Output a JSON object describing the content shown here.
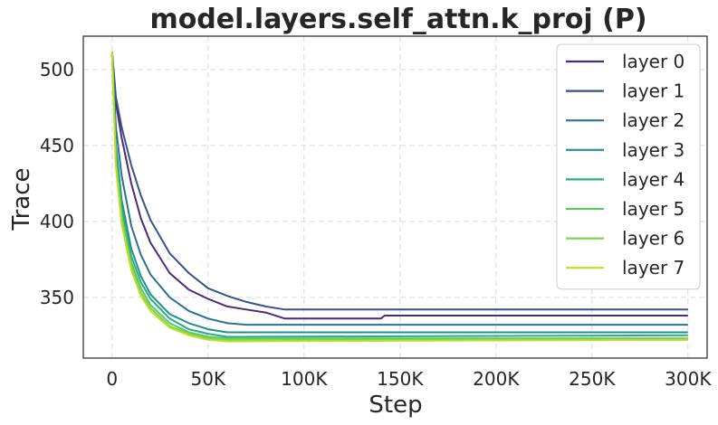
{
  "chart_data": {
    "type": "line",
    "title": "model.layers.self_attn.k_proj (P)",
    "xlabel": "Step",
    "ylabel": "Trace",
    "xlim": [
      -15000,
      310000
    ],
    "ylim": [
      310,
      522
    ],
    "xticks": [
      0,
      50000,
      100000,
      150000,
      200000,
      250000,
      300000
    ],
    "xtick_labels": [
      "0",
      "50K",
      "100K",
      "150K",
      "200K",
      "250K",
      "300K"
    ],
    "yticks": [
      350,
      400,
      450,
      500
    ],
    "ytick_labels": [
      "350",
      "400",
      "450",
      "500"
    ],
    "grid": true,
    "legend_position": "top-right",
    "series": [
      {
        "name": "layer 0",
        "color": "#472c7a",
        "x": [
          0,
          2000,
          5000,
          10000,
          15000,
          20000,
          30000,
          40000,
          50000,
          60000,
          70000,
          80000,
          90000,
          100000,
          140000,
          142000,
          300000
        ],
        "y": [
          510,
          478,
          455,
          425,
          402,
          386,
          366,
          355,
          349,
          344,
          342,
          340,
          336,
          336,
          336,
          338,
          338
        ]
      },
      {
        "name": "layer 1",
        "color": "#3b518b",
        "x": [
          0,
          2000,
          5000,
          10000,
          15000,
          20000,
          30000,
          40000,
          50000,
          60000,
          70000,
          80000,
          90000,
          300000
        ],
        "y": [
          512,
          482,
          462,
          437,
          417,
          401,
          379,
          366,
          356,
          351,
          347,
          344,
          342,
          342
        ]
      },
      {
        "name": "layer 2",
        "color": "#2c718e",
        "x": [
          0,
          2000,
          5000,
          10000,
          15000,
          20000,
          30000,
          40000,
          50000,
          60000,
          70000,
          300000
        ],
        "y": [
          510,
          462,
          430,
          397,
          378,
          365,
          350,
          341,
          336,
          333,
          332,
          332
        ]
      },
      {
        "name": "layer 3",
        "color": "#21908d",
        "x": [
          0,
          2000,
          5000,
          10000,
          15000,
          20000,
          30000,
          40000,
          50000,
          60000,
          300000
        ],
        "y": [
          510,
          450,
          414,
          382,
          364,
          352,
          339,
          333,
          329,
          327,
          327
        ]
      },
      {
        "name": "layer 4",
        "color": "#27ad81",
        "x": [
          0,
          2000,
          5000,
          10000,
          15000,
          20000,
          30000,
          40000,
          50000,
          60000,
          300000
        ],
        "y": [
          510,
          445,
          408,
          377,
          360,
          349,
          336,
          329,
          326,
          324,
          325
        ]
      },
      {
        "name": "layer 5",
        "color": "#5cc863",
        "x": [
          0,
          2000,
          5000,
          10000,
          15000,
          20000,
          30000,
          40000,
          50000,
          60000,
          300000
        ],
        "y": [
          510,
          440,
          404,
          373,
          356,
          345,
          333,
          327,
          324,
          323,
          323
        ]
      },
      {
        "name": "layer 6",
        "color": "#7fd34e",
        "x": [
          0,
          2000,
          5000,
          10000,
          15000,
          20000,
          30000,
          40000,
          50000,
          60000,
          300000
        ],
        "y": [
          510,
          438,
          400,
          370,
          353,
          343,
          331,
          326,
          323,
          322,
          322
        ]
      },
      {
        "name": "layer 7",
        "color": "#bddf26",
        "x": [
          0,
          2000,
          5000,
          10000,
          15000,
          20000,
          30000,
          40000,
          50000,
          60000,
          300000
        ],
        "y": [
          512,
          436,
          398,
          368,
          351,
          341,
          330,
          325,
          322,
          321,
          322
        ]
      }
    ]
  }
}
